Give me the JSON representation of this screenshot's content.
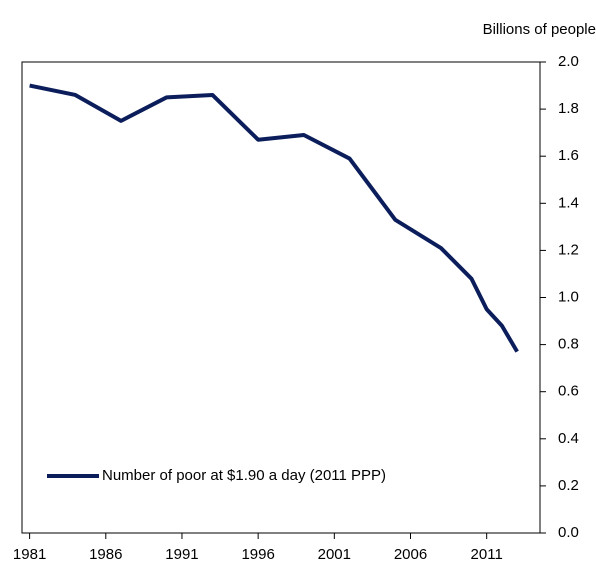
{
  "chart_data": {
    "type": "line",
    "y_axis_label": "Billions of people",
    "x": [
      1981,
      1984,
      1987,
      1990,
      1993,
      1996,
      1999,
      2002,
      2005,
      2008,
      2010,
      2011,
      2012,
      2013
    ],
    "series": [
      {
        "name": "Number of poor at $1.90 a day (2011 PPP)",
        "color": "#0b1e5b",
        "values": [
          1.9,
          1.86,
          1.75,
          1.85,
          1.86,
          1.67,
          1.69,
          1.59,
          1.33,
          1.21,
          1.08,
          0.95,
          0.88,
          0.77
        ]
      }
    ],
    "xlim": [
      1980.5,
      2014.5
    ],
    "xticks": [
      1981,
      1986,
      1991,
      1996,
      2001,
      2006,
      2011
    ],
    "ylim": [
      0,
      2
    ],
    "yticks": [
      {
        "value": 0,
        "label": "0.0"
      },
      0.2,
      0.4,
      0.6,
      0.8,
      {
        "value": 1,
        "label": "1.0"
      },
      1.2,
      1.4,
      1.6,
      1.8,
      {
        "value": 2,
        "label": "2.0"
      }
    ],
    "y_axis_side": "right",
    "legend": "lower left"
  }
}
